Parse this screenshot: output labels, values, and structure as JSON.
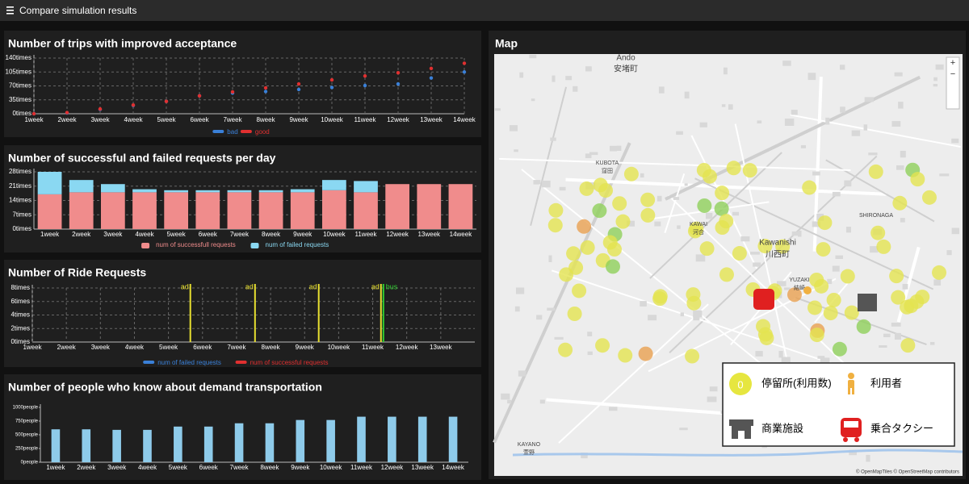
{
  "header": {
    "title": "Compare simulation results"
  },
  "chart_data": [
    {
      "type": "line",
      "title": "Number of trips with improved acceptance",
      "categories": [
        "1week",
        "2week",
        "3week",
        "4week",
        "5week",
        "6week",
        "7week",
        "8week",
        "9week",
        "10week",
        "11week",
        "12week",
        "13week",
        "14week"
      ],
      "series": [
        {
          "name": "bad",
          "color": "#3a80d8",
          "values": [
            0,
            2,
            11,
            21,
            31,
            45,
            52,
            56,
            61,
            66,
            71,
            75,
            90,
            105
          ]
        },
        {
          "name": "good",
          "color": "#e03030",
          "values": [
            0,
            3,
            12,
            22,
            31,
            45,
            55,
            65,
            75,
            85,
            95,
            103,
            114,
            127
          ]
        }
      ],
      "ylim": [
        0,
        140
      ],
      "yticks": [
        {
          "value": 0,
          "label": "0times"
        },
        {
          "value": 35,
          "label": "35times"
        },
        {
          "value": 70,
          "label": "70times"
        },
        {
          "value": 105,
          "label": "105times"
        },
        {
          "value": 140,
          "label": "140times"
        }
      ],
      "grid": true,
      "xgrid": true,
      "legend": "bottom"
    },
    {
      "type": "stacked_bar",
      "title": "Number of successful and failed requests per day",
      "categories": [
        "1week",
        "2week",
        "3week",
        "4week",
        "5week",
        "6week",
        "7week",
        "8week",
        "9week",
        "10week",
        "11week",
        "12week",
        "13week",
        "14week"
      ],
      "series": [
        {
          "name": "num of successfull requests",
          "color": "#f08c8c",
          "values": [
            17,
            18,
            18,
            18,
            18,
            18,
            18,
            18,
            18,
            19,
            18,
            22,
            22,
            22
          ]
        },
        {
          "name": "num of failed requests",
          "color": "#8ad8f2",
          "values": [
            11,
            6,
            4,
            1.5,
            1,
            1,
            1,
            1,
            1.5,
            5,
            5.5,
            0,
            0,
            0
          ]
        }
      ],
      "ylim": [
        0,
        28
      ],
      "yticks": [
        {
          "value": 0,
          "label": "0times"
        },
        {
          "value": 7,
          "label": "7times"
        },
        {
          "value": 14,
          "label": "14times"
        },
        {
          "value": 21,
          "label": "21times"
        },
        {
          "value": 28,
          "label": "28times"
        }
      ],
      "grid": true,
      "xgrid": false,
      "legend": "bottom"
    },
    {
      "type": "line",
      "title": "Number of Ride Requests",
      "x": [
        0,
        1,
        2,
        3,
        4,
        5,
        6,
        7,
        8,
        9,
        10,
        11,
        12,
        13,
        14,
        15,
        16,
        17,
        18,
        19,
        20,
        21,
        22,
        23,
        24,
        25,
        26,
        27,
        28,
        29,
        30,
        31,
        32,
        33,
        34,
        35,
        36,
        37,
        38,
        39,
        40,
        41,
        42,
        43,
        44,
        45,
        46,
        47,
        48,
        49,
        50,
        51,
        52,
        53,
        54,
        55,
        56,
        57,
        58,
        59,
        60,
        61,
        62,
        63,
        64,
        65,
        66,
        67,
        68,
        69,
        70,
        71,
        72,
        73,
        74,
        75,
        76,
        77,
        78,
        79,
        80,
        81,
        82,
        83,
        84,
        85,
        86,
        87,
        88,
        89,
        90
      ],
      "series": [
        {
          "name": "num of failed requests",
          "color": "#3a80d8",
          "values": [
            1,
            5,
            0,
            1,
            0,
            0,
            1,
            0,
            1,
            0,
            0,
            2,
            0,
            0,
            0,
            0,
            1,
            0,
            0,
            0,
            1,
            0,
            0,
            0,
            1,
            0,
            0,
            0,
            1,
            0,
            0,
            0,
            0,
            1,
            0,
            0,
            0,
            1,
            0,
            0,
            0,
            0,
            0,
            1,
            0,
            0,
            0,
            0,
            1,
            0,
            0,
            0,
            1,
            0,
            0,
            0,
            0,
            0,
            1,
            0,
            0,
            1,
            0,
            0,
            0,
            0,
            0,
            1,
            0,
            0,
            1,
            0,
            0,
            0,
            0,
            0,
            1,
            0,
            0,
            1,
            0,
            0,
            0,
            0,
            0,
            1,
            0,
            0,
            0,
            0,
            1
          ]
        },
        {
          "name": "num of successful requests",
          "color": "#e03030",
          "values": [
            1,
            3,
            0.5,
            2,
            3,
            1,
            2,
            2.5,
            1,
            3,
            2,
            1,
            3.5,
            1.5,
            2,
            3,
            1,
            2.5,
            3,
            1,
            2,
            3,
            1.5,
            2,
            3.5,
            1,
            2,
            3,
            1,
            2.5,
            3,
            1.5,
            2,
            3,
            1,
            2,
            3.5,
            1,
            2,
            3,
            1.5,
            2.5,
            3,
            1,
            2,
            3,
            1.5,
            2.5,
            3.5,
            1,
            2,
            3,
            1,
            2.5,
            3,
            1.5,
            2.5,
            3,
            1,
            2,
            3.5,
            1,
            2,
            3,
            1.5,
            2.5,
            3,
            1,
            2,
            3,
            1.5,
            3,
            2,
            1,
            3.5,
            2,
            2.5,
            3,
            1,
            2,
            3,
            1.5,
            2.5,
            3,
            1,
            2.5,
            3,
            1.5,
            2,
            3.5,
            1
          ]
        }
      ],
      "xlim": [
        0,
        91
      ],
      "xticks": [
        {
          "value": 0,
          "label": "1week"
        },
        {
          "value": 7,
          "label": "2week"
        },
        {
          "value": 14,
          "label": "3week"
        },
        {
          "value": 21,
          "label": "4week"
        },
        {
          "value": 28,
          "label": "5week"
        },
        {
          "value": 35,
          "label": "6week"
        },
        {
          "value": 42,
          "label": "7week"
        },
        {
          "value": 49,
          "label": "8week"
        },
        {
          "value": 56,
          "label": "9week"
        },
        {
          "value": 63,
          "label": "10week"
        },
        {
          "value": 70,
          "label": "11week"
        },
        {
          "value": 77,
          "label": "12week"
        },
        {
          "value": 84,
          "label": "13week"
        }
      ],
      "ylim": [
        0,
        8
      ],
      "yticks": [
        {
          "value": 0,
          "label": "0times"
        },
        {
          "value": 2,
          "label": "2times"
        },
        {
          "value": 4,
          "label": "4times"
        },
        {
          "value": 6,
          "label": "6times"
        },
        {
          "value": 8,
          "label": "8times"
        }
      ],
      "annotations": [
        {
          "label": "ad",
          "x": 32.5,
          "color": "#e8e030"
        },
        {
          "label": "ad",
          "x": 45.8,
          "color": "#e8e030"
        },
        {
          "label": "ad",
          "x": 58.9,
          "color": "#e8e030"
        },
        {
          "label": "ad",
          "x": 71.7,
          "color": "#e8e030"
        },
        {
          "label": "bus",
          "x": 72.2,
          "color": "#30d030"
        }
      ],
      "grid": true,
      "xgrid": true,
      "legend": "bottom"
    },
    {
      "type": "bar",
      "title": "Number of people who know about demand transportation",
      "categories": [
        "1week",
        "2week",
        "3week",
        "4week",
        "5week",
        "6week",
        "7week",
        "8week",
        "9week",
        "10week",
        "11week",
        "12week",
        "13week",
        "14week"
      ],
      "values": [
        600,
        600,
        590,
        590,
        650,
        650,
        710,
        710,
        770,
        770,
        830,
        830,
        830,
        830
      ],
      "color": "#8ecbea",
      "ylim": [
        0,
        1000
      ],
      "yticks": [
        {
          "value": 0,
          "label": "0people"
        },
        {
          "value": 250,
          "label": "250people"
        },
        {
          "value": 500,
          "label": "500people"
        },
        {
          "value": 750,
          "label": "750people"
        },
        {
          "value": 1000,
          "label": "1000people"
        }
      ],
      "grid": false,
      "xgrid": false
    }
  ],
  "map": {
    "title": "Map",
    "zoom_in": "+",
    "zoom_out": "−",
    "labels": [
      "Ando",
      "安堵町",
      "KUBOTA",
      "窪田",
      "Kawanishi",
      "川西町",
      "SHIRONAGA",
      "YUZAKI",
      "結崎",
      "KAYANO",
      "萱野",
      "KAWAI",
      "河合"
    ],
    "legend": {
      "stop_count": "0",
      "stop": "停留所(利用数)",
      "user": "利用者",
      "shop": "商業施設",
      "taxi": "乗合タクシー"
    },
    "attribution": "© OpenMapTiles © OpenStreetMap contributors"
  }
}
